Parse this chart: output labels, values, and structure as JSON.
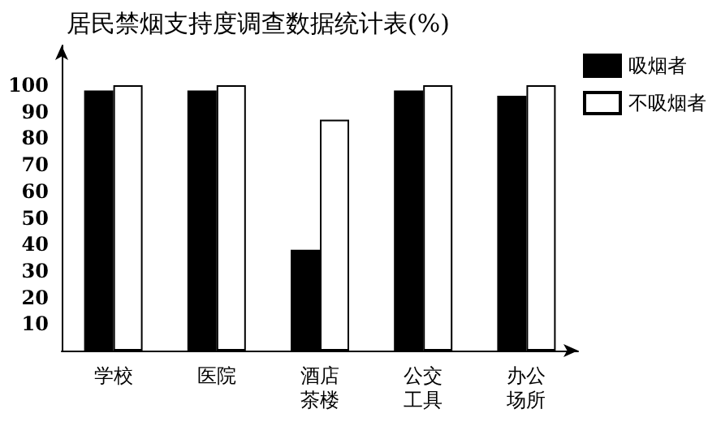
{
  "chart_data": {
    "type": "bar",
    "title": "居民禁烟支持度调查数据统计表(%)",
    "categories": [
      "学校",
      "医院",
      "酒店茶楼",
      "公交工具",
      "办公场所"
    ],
    "series": [
      {
        "name": "吸烟者",
        "color": "#000000",
        "values": [
          98,
          98,
          38,
          98,
          96
        ]
      },
      {
        "name": "不吸烟者",
        "color": "#ffffff",
        "values": [
          100,
          100,
          87,
          100,
          100
        ]
      }
    ],
    "ylim": [
      0,
      115
    ],
    "yticks": [
      10,
      20,
      30,
      40,
      50,
      60,
      70,
      80,
      90,
      100
    ],
    "grid": false,
    "legend": "top right"
  }
}
